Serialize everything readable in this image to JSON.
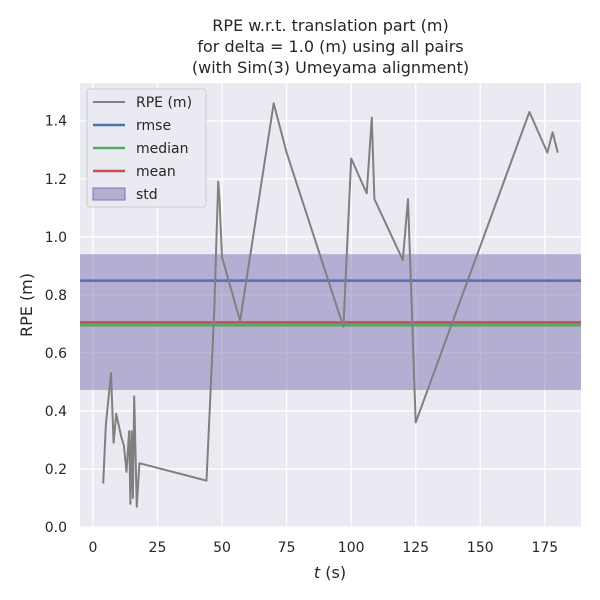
{
  "chart_data": {
    "type": "line",
    "title_lines": [
      "RPE w.r.t. translation part (m)",
      "for delta = 1.0 (m) using all pairs",
      "(with Sim(3) Umeyama alignment)"
    ],
    "xlabel_var": "t",
    "xlabel_unit": " (s)",
    "ylabel": "RPE (m)",
    "xlim": [
      -5,
      189
    ],
    "ylim": [
      0,
      1.53
    ],
    "xticks": [
      0,
      25,
      50,
      75,
      100,
      125,
      150,
      175
    ],
    "yticks": [
      0.0,
      0.2,
      0.4,
      0.6,
      0.8,
      1.0,
      1.2,
      1.4
    ],
    "grid": true,
    "legend_position": "upper-left",
    "series": [
      {
        "name": "RPE (m)",
        "color": "#808080",
        "x": [
          4,
          5,
          7,
          8,
          9,
          11,
          12,
          13,
          14,
          14.5,
          15,
          15.5,
          16,
          17,
          18,
          44,
          47,
          48.5,
          49,
          50,
          57,
          70,
          75,
          97,
          100,
          106,
          108,
          109,
          120,
          122,
          125,
          169,
          176,
          178,
          180
        ],
        "y": [
          0.15,
          0.35,
          0.53,
          0.29,
          0.39,
          0.31,
          0.28,
          0.19,
          0.33,
          0.08,
          0.33,
          0.1,
          0.45,
          0.07,
          0.22,
          0.16,
          0.75,
          1.19,
          1.13,
          0.93,
          0.71,
          1.46,
          1.29,
          0.69,
          1.27,
          1.15,
          1.41,
          1.13,
          0.92,
          1.13,
          0.36,
          1.43,
          1.29,
          1.36,
          1.29
        ]
      }
    ],
    "stats": [
      {
        "name": "rmse",
        "value": 0.849,
        "color": "#4c72b0"
      },
      {
        "name": "median",
        "value": 0.695,
        "color": "#55a868"
      },
      {
        "name": "mean",
        "value": 0.705,
        "color": "#c44e52"
      }
    ],
    "std": {
      "name": "std",
      "lower": 0.472,
      "upper": 0.94,
      "color": "#8172b2"
    }
  }
}
